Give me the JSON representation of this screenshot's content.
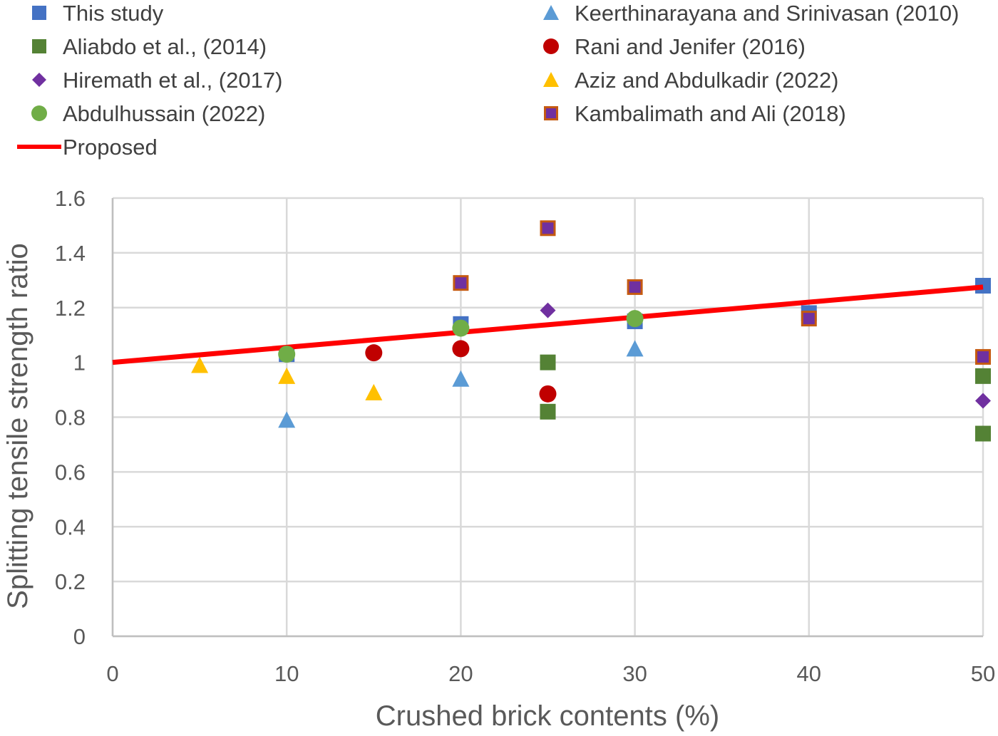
{
  "chart_data": {
    "type": "scatter",
    "xlabel": "Crushed brick contents (%)",
    "ylabel": "Splitting tensile strength ratio",
    "xlim": [
      0,
      50
    ],
    "ylim": [
      0,
      1.6
    ],
    "xticks": [
      "0",
      "10",
      "20",
      "30",
      "40",
      "50"
    ],
    "yticks": [
      "0",
      "0.2",
      "0.4",
      "0.6",
      "0.8",
      "1",
      "1.2",
      "1.4",
      "1.6"
    ],
    "grid": true,
    "legend_position": "top",
    "series": [
      {
        "name": "This study",
        "marker": "square",
        "color": "#4472c4",
        "points": [
          [
            10,
            1.03
          ],
          [
            20,
            1.14
          ],
          [
            30,
            1.15
          ],
          [
            40,
            1.18
          ],
          [
            50,
            1.28
          ]
        ]
      },
      {
        "name": "Keerthinarayana and Srinivasan (2010)",
        "marker": "triangle",
        "color": "#5b9bd5",
        "points": [
          [
            10,
            0.79
          ],
          [
            20,
            0.94
          ],
          [
            30,
            1.05
          ]
        ]
      },
      {
        "name": "Aliabdo et al., (2014)",
        "marker": "square",
        "color": "#548235",
        "points": [
          [
            25,
            1.0
          ],
          [
            25,
            0.82
          ],
          [
            50,
            0.95
          ],
          [
            50,
            0.74
          ]
        ]
      },
      {
        "name": "Rani and Jenifer (2016)",
        "marker": "circle",
        "color": "#c00000",
        "points": [
          [
            15,
            1.035
          ],
          [
            20,
            1.05
          ],
          [
            25,
            0.885
          ]
        ]
      },
      {
        "name": "Hiremath et al., (2017)",
        "marker": "diamond",
        "color": "#7030a0",
        "points": [
          [
            25,
            1.19
          ],
          [
            50,
            0.86
          ]
        ]
      },
      {
        "name": "Aziz and Abdulkadir (2022)",
        "marker": "triangle",
        "color": "#ffc000",
        "points": [
          [
            5,
            0.99
          ],
          [
            10,
            0.95
          ],
          [
            15,
            0.89
          ]
        ]
      },
      {
        "name": "Abdulhussain (2022)",
        "marker": "circle",
        "color": "#70ad47",
        "points": [
          [
            10,
            1.03
          ],
          [
            20,
            1.125
          ],
          [
            30,
            1.16
          ]
        ]
      },
      {
        "name": "Kambalimath and Ali (2018)",
        "marker": "square-outlined",
        "color": "#7030a0",
        "edge_color": "#c55a11",
        "points": [
          [
            20,
            1.29
          ],
          [
            25,
            1.49
          ],
          [
            30,
            1.275
          ],
          [
            40,
            1.16
          ],
          [
            50,
            1.02
          ]
        ]
      },
      {
        "name": "Proposed",
        "marker": "line",
        "color": "#ff0000",
        "points": [
          [
            0,
            1.0
          ],
          [
            50,
            1.275
          ]
        ]
      }
    ]
  }
}
